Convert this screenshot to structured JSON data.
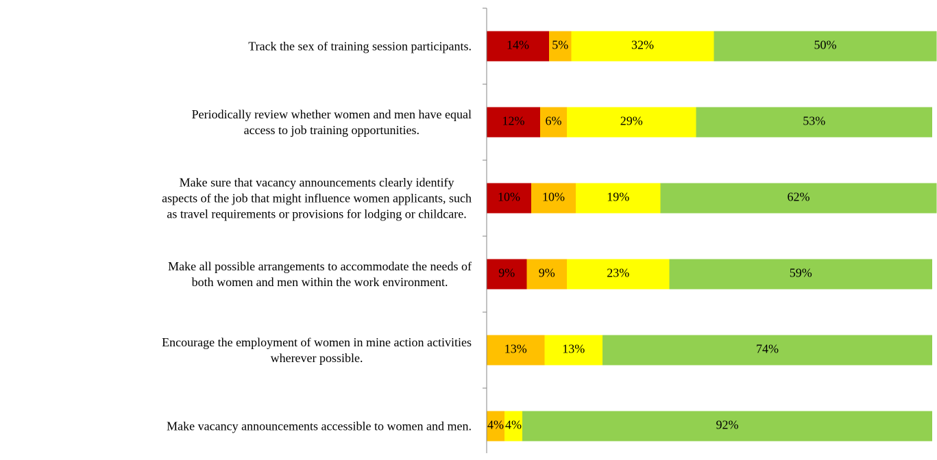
{
  "chart_data": {
    "type": "stacked-bar-horizontal",
    "categories": [
      "Track the sex of training session participants.",
      "Periodically review whether women and men have equal\naccess to job training opportunities.",
      "Make sure that vacancy announcements clearly identify\naspects of the job that might influence women applicants, such\nas travel requirements or provisions for lodging or childcare.",
      "Make all possible arrangements to accommodate the needs of\nboth women and men within the work environment.",
      "Encourage the employment of women in mine action activities\nwherever possible.",
      "Make vacancy announcements accessible to women and men."
    ],
    "series": [
      {
        "color": "#c00000",
        "values": [
          14,
          12,
          10,
          9,
          null,
          null
        ],
        "value_labels": [
          "14%",
          "12%",
          "10%",
          "9%",
          null,
          null
        ]
      },
      {
        "color": "#ffc000",
        "values": [
          5,
          6,
          10,
          9,
          13,
          4
        ],
        "value_labels": [
          "5%",
          "6%",
          "10%",
          "9%",
          "13%",
          "4%"
        ]
      },
      {
        "color": "#ffff00",
        "values": [
          32,
          29,
          19,
          23,
          13,
          4
        ],
        "value_labels": [
          "32%",
          "29%",
          "19%",
          "23%",
          "13%",
          "4%"
        ]
      },
      {
        "color": "#92d050",
        "values": [
          50,
          53,
          62,
          59,
          74,
          92
        ],
        "value_labels": [
          "50%",
          "53%",
          "62%",
          "59%",
          "74%",
          "92%"
        ]
      }
    ],
    "xlim": [
      0,
      100
    ]
  }
}
